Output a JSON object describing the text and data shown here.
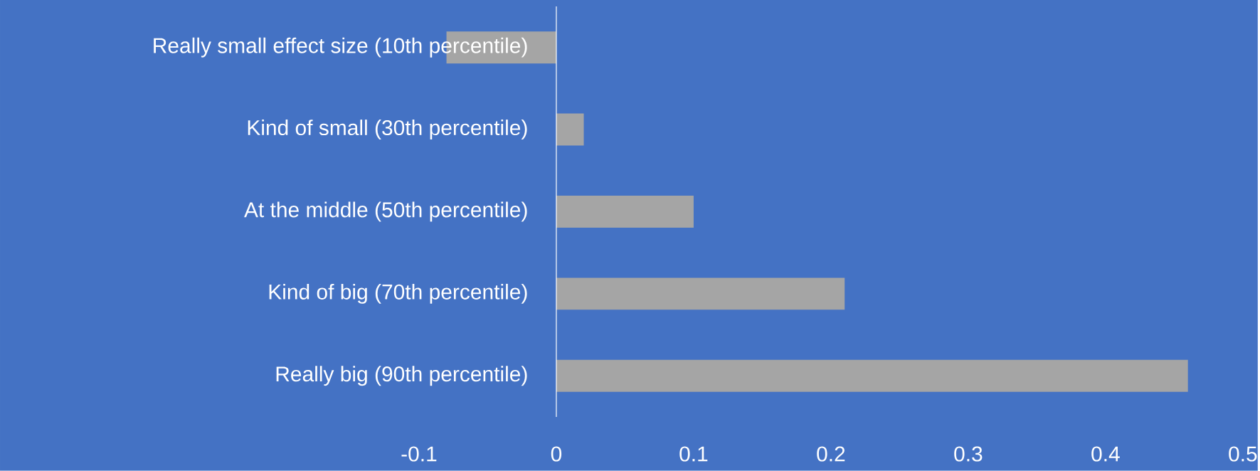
{
  "chart_data": {
    "type": "bar",
    "orientation": "horizontal",
    "categories": [
      "Really small effect size (10th percentile)",
      "Kind of small (30th percentile)",
      "At the middle (50th percentile)",
      "Kind of big (70th percentile)",
      "Really big (90th percentile)"
    ],
    "values": [
      -0.08,
      0.02,
      0.1,
      0.21,
      0.46
    ],
    "color": "#a5a5a5",
    "xlim": [
      -0.1,
      0.5
    ],
    "xticks": [
      -0.1,
      0,
      0.1,
      0.2,
      0.3,
      0.4,
      0.5
    ]
  }
}
